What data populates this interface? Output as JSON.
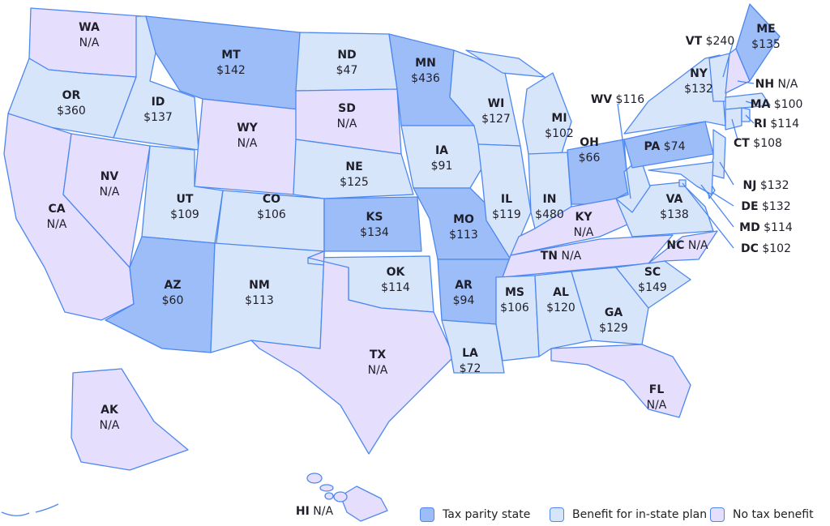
{
  "colors": {
    "tax_parity": "#9dbdf9",
    "in_state": "#d7e5fb",
    "none": "#e6defd",
    "border": "#4d88f0"
  },
  "legend": [
    {
      "key": "tax_parity",
      "label": "Tax parity state"
    },
    {
      "key": "in_state",
      "label": "Benefit for in-state plan"
    },
    {
      "key": "none",
      "label": "No tax benefit"
    }
  ],
  "states": [
    {
      "abbr": "WA",
      "value": "N/A",
      "cat": "none"
    },
    {
      "abbr": "OR",
      "value": "$360",
      "cat": "in_state"
    },
    {
      "abbr": "CA",
      "value": "N/A",
      "cat": "none"
    },
    {
      "abbr": "NV",
      "value": "N/A",
      "cat": "none"
    },
    {
      "abbr": "ID",
      "value": "$137",
      "cat": "in_state"
    },
    {
      "abbr": "MT",
      "value": "$142",
      "cat": "tax_parity"
    },
    {
      "abbr": "WY",
      "value": "N/A",
      "cat": "none"
    },
    {
      "abbr": "UT",
      "value": "$109",
      "cat": "in_state"
    },
    {
      "abbr": "CO",
      "value": "$106",
      "cat": "in_state"
    },
    {
      "abbr": "AZ",
      "value": "$60",
      "cat": "tax_parity"
    },
    {
      "abbr": "NM",
      "value": "$113",
      "cat": "in_state"
    },
    {
      "abbr": "ND",
      "value": "$47",
      "cat": "in_state"
    },
    {
      "abbr": "SD",
      "value": "N/A",
      "cat": "none"
    },
    {
      "abbr": "NE",
      "value": "$125",
      "cat": "in_state"
    },
    {
      "abbr": "KS",
      "value": "$134",
      "cat": "tax_parity"
    },
    {
      "abbr": "OK",
      "value": "$114",
      "cat": "in_state"
    },
    {
      "abbr": "TX",
      "value": "N/A",
      "cat": "none"
    },
    {
      "abbr": "MN",
      "value": "$436",
      "cat": "tax_parity"
    },
    {
      "abbr": "IA",
      "value": "$91",
      "cat": "in_state"
    },
    {
      "abbr": "MO",
      "value": "$113",
      "cat": "tax_parity"
    },
    {
      "abbr": "AR",
      "value": "$94",
      "cat": "tax_parity"
    },
    {
      "abbr": "LA",
      "value": "$72",
      "cat": "in_state"
    },
    {
      "abbr": "WI",
      "value": "$127",
      "cat": "in_state"
    },
    {
      "abbr": "IL",
      "value": "$119",
      "cat": "in_state"
    },
    {
      "abbr": "MI",
      "value": "$102",
      "cat": "in_state"
    },
    {
      "abbr": "IN",
      "value": "$480",
      "cat": "in_state"
    },
    {
      "abbr": "OH",
      "value": "$66",
      "cat": "tax_parity"
    },
    {
      "abbr": "KY",
      "value": "N/A",
      "cat": "none"
    },
    {
      "abbr": "TN",
      "value": "N/A",
      "cat": "none"
    },
    {
      "abbr": "MS",
      "value": "$106",
      "cat": "in_state"
    },
    {
      "abbr": "AL",
      "value": "$120",
      "cat": "in_state"
    },
    {
      "abbr": "GA",
      "value": "$129",
      "cat": "in_state"
    },
    {
      "abbr": "FL",
      "value": "N/A",
      "cat": "none"
    },
    {
      "abbr": "SC",
      "value": "$149",
      "cat": "in_state"
    },
    {
      "abbr": "NC",
      "value": "N/A",
      "cat": "none"
    },
    {
      "abbr": "VA",
      "value": "$138",
      "cat": "in_state"
    },
    {
      "abbr": "WV",
      "value": "$116",
      "cat": "in_state"
    },
    {
      "abbr": "PA",
      "value": "$74",
      "cat": "tax_parity"
    },
    {
      "abbr": "NY",
      "value": "$132",
      "cat": "in_state"
    },
    {
      "abbr": "VT",
      "value": "$240",
      "cat": "in_state"
    },
    {
      "abbr": "NH",
      "value": "N/A",
      "cat": "none"
    },
    {
      "abbr": "ME",
      "value": "$135",
      "cat": "tax_parity"
    },
    {
      "abbr": "MA",
      "value": "$100",
      "cat": "in_state"
    },
    {
      "abbr": "CT",
      "value": "$108",
      "cat": "in_state"
    },
    {
      "abbr": "RI",
      "value": "$114",
      "cat": "in_state"
    },
    {
      "abbr": "NJ",
      "value": "$132",
      "cat": "in_state"
    },
    {
      "abbr": "DE",
      "value": "$132",
      "cat": "in_state"
    },
    {
      "abbr": "MD",
      "value": "$114",
      "cat": "in_state"
    },
    {
      "abbr": "DC",
      "value": "$102",
      "cat": "in_state"
    },
    {
      "abbr": "AK",
      "value": "N/A",
      "cat": "none"
    },
    {
      "abbr": "HI",
      "value": "N/A",
      "cat": "none"
    }
  ]
}
